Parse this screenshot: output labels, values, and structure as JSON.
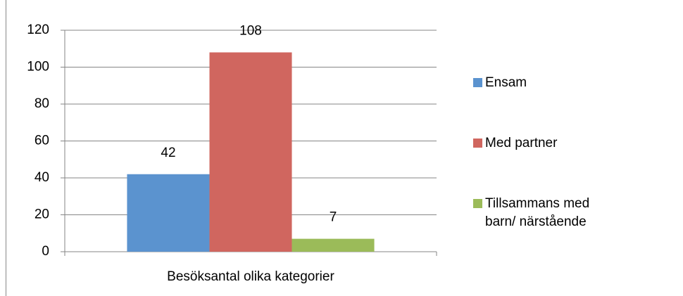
{
  "chart_data": {
    "type": "bar",
    "categories": [
      "Besöksantal olika kategorier"
    ],
    "series": [
      {
        "name": "Ensam",
        "color": "#5b93cf",
        "values": [
          42
        ]
      },
      {
        "name": "Med partner",
        "color": "#d0665f",
        "values": [
          108
        ]
      },
      {
        "name": "Tillsammans med barn/ närstående",
        "color": "#9bbb59",
        "values": [
          7
        ]
      }
    ],
    "ylim": [
      0,
      120
    ],
    "yticks": [
      0,
      20,
      40,
      60,
      80,
      100,
      120
    ],
    "grid": true,
    "legend": "right"
  }
}
